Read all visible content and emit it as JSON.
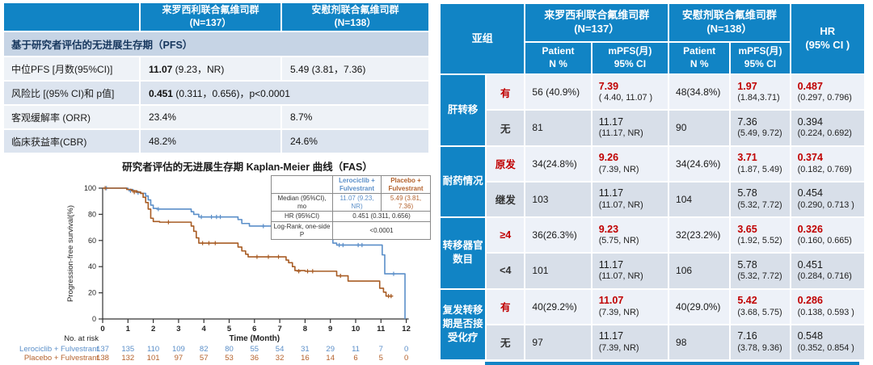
{
  "colors": {
    "header_blue": "#1184c5",
    "navy": "#17375e",
    "highlight_red": "#c00000",
    "curve_blue": "#5b8fc9",
    "curve_orange": "#a85c24",
    "label_blue": "#5b8fc9",
    "label_orange": "#b4622d"
  },
  "pfs_table": {
    "col_headers": [
      "来罗西利联合氟维司群\n(N=137）",
      "安慰剂联合氟维司群\n(N=138）"
    ],
    "section_header": "基于研究者评估的无进展生存期（PFS）",
    "rows": [
      {
        "label": "中位PFS [月数(95%CI)]",
        "span": false,
        "cells": [
          {
            "bold": "11.07",
            "rest": " (9.23，NR)"
          },
          {
            "bold": "",
            "rest": "5.49 (3.81，7.36)"
          }
        ]
      },
      {
        "label": "风险比 [(95% CI)和 p值]",
        "span": true,
        "cells": [
          {
            "bold": "0.451",
            "rest": " (0.311，0.656)，p<0.0001"
          }
        ]
      },
      {
        "label": "客观缓解率 (ORR)",
        "span": false,
        "cells": [
          {
            "bold": "",
            "rest": "23.4%"
          },
          {
            "bold": "",
            "rest": "8.7%"
          }
        ]
      },
      {
        "label": "临床获益率(CBR)",
        "span": false,
        "cells": [
          {
            "bold": "",
            "rest": "48.2%"
          },
          {
            "bold": "",
            "rest": "24.6%"
          }
        ]
      }
    ]
  },
  "chart_data": {
    "type": "line",
    "title": "研究者评估的无进展生存期 Kaplan-Meier 曲线（FAS）",
    "xlabel": "Time (Month)",
    "ylabel": "Progression-free survival(%)",
    "xlim": [
      0,
      12
    ],
    "ylim": [
      0,
      100
    ],
    "xticks": [
      0,
      1,
      2,
      3,
      4,
      5,
      6,
      7,
      8,
      9,
      10,
      11,
      12
    ],
    "yticks": [
      0,
      20,
      40,
      60,
      80,
      100
    ],
    "series": [
      {
        "name": "Lerociclib + Fulvestrant",
        "color": "#5b8fc9",
        "steps": [
          [
            0,
            100
          ],
          [
            1.0,
            99
          ],
          [
            1.2,
            98
          ],
          [
            1.35,
            97
          ],
          [
            1.5,
            96
          ],
          [
            1.7,
            94
          ],
          [
            1.8,
            91
          ],
          [
            1.9,
            87
          ],
          [
            2.0,
            84.5
          ],
          [
            2.15,
            84
          ],
          [
            3.5,
            82
          ],
          [
            3.6,
            80
          ],
          [
            3.8,
            78
          ],
          [
            5.35,
            76
          ],
          [
            5.5,
            73
          ],
          [
            5.8,
            71
          ],
          [
            7.25,
            68.5
          ],
          [
            7.4,
            66.5
          ],
          [
            7.55,
            64
          ],
          [
            9.0,
            61
          ],
          [
            9.1,
            58
          ],
          [
            9.25,
            56.5
          ],
          [
            11.05,
            49
          ],
          [
            11.15,
            34.5
          ],
          [
            11.95,
            0
          ]
        ],
        "censors": [
          [
            0.15,
            100
          ],
          [
            1.1,
            98
          ],
          [
            1.4,
            96.5
          ],
          [
            2.2,
            84
          ],
          [
            3.9,
            78
          ],
          [
            4.3,
            78
          ],
          [
            4.5,
            78
          ],
          [
            4.65,
            78
          ],
          [
            6.35,
            71
          ],
          [
            7.3,
            68.5
          ],
          [
            7.9,
            64
          ],
          [
            8.15,
            64
          ],
          [
            8.45,
            64
          ],
          [
            9.35,
            56.5
          ],
          [
            9.5,
            56.5
          ],
          [
            10.1,
            56.5
          ],
          [
            10.25,
            56.5
          ],
          [
            11.5,
            34.5
          ]
        ]
      },
      {
        "name": "Placebo + Fulvestrant",
        "color": "#a85c24",
        "steps": [
          [
            0,
            100
          ],
          [
            0.95,
            99
          ],
          [
            1.15,
            98
          ],
          [
            1.35,
            97
          ],
          [
            1.5,
            96
          ],
          [
            1.6,
            93
          ],
          [
            1.7,
            89
          ],
          [
            1.8,
            84
          ],
          [
            1.9,
            77
          ],
          [
            2.0,
            74.5
          ],
          [
            2.25,
            74
          ],
          [
            3.5,
            71
          ],
          [
            3.6,
            67
          ],
          [
            3.7,
            62
          ],
          [
            3.8,
            58
          ],
          [
            5.35,
            55
          ],
          [
            5.5,
            52
          ],
          [
            5.65,
            49.5
          ],
          [
            5.75,
            47.5
          ],
          [
            7.25,
            45
          ],
          [
            7.35,
            43
          ],
          [
            7.5,
            40
          ],
          [
            7.6,
            37
          ],
          [
            8.0,
            36.5
          ],
          [
            9.25,
            33
          ],
          [
            9.7,
            29
          ],
          [
            10.95,
            23.5
          ],
          [
            11.1,
            20.5
          ],
          [
            11.2,
            17.5
          ],
          [
            11.45,
            17.5
          ]
        ],
        "censors": [
          [
            0.1,
            100
          ],
          [
            1.25,
            97
          ],
          [
            2.6,
            74
          ],
          [
            3.95,
            58
          ],
          [
            4.2,
            58
          ],
          [
            4.45,
            58
          ],
          [
            6.1,
            47.5
          ],
          [
            6.55,
            47.5
          ],
          [
            6.95,
            47.5
          ],
          [
            7.75,
            36.5
          ],
          [
            8.1,
            36.5
          ],
          [
            8.3,
            36.5
          ],
          [
            9.4,
            33
          ],
          [
            11.3,
            17.5
          ],
          [
            11.4,
            17.5
          ]
        ]
      }
    ],
    "legend_table": {
      "col1": "Lerociclib +\nFulvestrant",
      "col2": "Placebo +\nFulvestrant",
      "rows": [
        {
          "label": "Median (95%CI), mo",
          "span": false,
          "v1": "11.07 (9.23, NR)",
          "v2": "5.49 (3.81, 7.36)"
        },
        {
          "label": "HR (95%CI)",
          "span": true,
          "v1": "0.451  (0.311, 0.656)"
        },
        {
          "label": "Log-Rank, one-side P",
          "span": true,
          "v1": "<0.0001"
        }
      ]
    },
    "at_risk": {
      "title": "No. at risk",
      "rows": [
        {
          "name": "Lerociclib + Fulvestrant",
          "color": "#5b8fc9",
          "values": [
            137,
            135,
            110,
            109,
            82,
            80,
            55,
            54,
            31,
            29,
            11,
            7,
            0
          ]
        },
        {
          "name": "Placebo + Fulvestrant",
          "color": "#b4622d",
          "values": [
            138,
            132,
            101,
            97,
            57,
            53,
            36,
            32,
            16,
            14,
            6,
            5,
            0
          ]
        }
      ]
    }
  },
  "subgroup_table": {
    "header": {
      "subgroup": "亚组",
      "group1": "来罗西利联合氟维司群\n(N=137）",
      "group2": "安慰剂联合氟维司群\n(N=138）",
      "sub_patient": "Patient\nN %",
      "sub_mpfs": "mPFS(月)\n95% CI",
      "hr": "HR\n(95% CI )"
    },
    "groups": [
      {
        "label": "肝转移",
        "rows": [
          {
            "name": "有",
            "highlight": true,
            "n1": "56 (40.9%)",
            "mpfs1_main": "7.39",
            "mpfs1_ci": "( 4.40, 11.07 )",
            "n2": "48(34.8%)",
            "mpfs2_main": "1.97",
            "mpfs2_ci": "(1.84,3.71)",
            "hr_main": "0.487",
            "hr_ci": "(0.297, 0.796)"
          },
          {
            "name": "无",
            "highlight": false,
            "n1": "81",
            "mpfs1_main": "11.17",
            "mpfs1_ci": "(11.17, NR)",
            "n2": "90",
            "mpfs2_main": "7.36",
            "mpfs2_ci": "(5.49, 9.72)",
            "hr_main": "0.394",
            "hr_ci": "(0.224, 0.692)"
          }
        ]
      },
      {
        "label": "耐药情况",
        "rows": [
          {
            "name": "原发",
            "highlight": true,
            "n1": "34(24.8%)",
            "mpfs1_main": "9.26",
            "mpfs1_ci": "(7.39, NR)",
            "n2": "34(24.6%)",
            "mpfs2_main": "3.71",
            "mpfs2_ci": "(1.87, 5.49)",
            "hr_main": "0.374",
            "hr_ci": "(0.182, 0.769)"
          },
          {
            "name": "继发",
            "highlight": false,
            "n1": "103",
            "mpfs1_main": "11.17",
            "mpfs1_ci": "(11.07, NR)",
            "n2": "104",
            "mpfs2_main": "5.78",
            "mpfs2_ci": "(5.32, 7.72)",
            "hr_main": "0.454",
            "hr_ci": "(0.290, 0.713 )"
          }
        ]
      },
      {
        "label": "转移器官数目",
        "rows": [
          {
            "name": "≥4",
            "highlight": true,
            "n1": "36(26.3%)",
            "mpfs1_main": "9.23",
            "mpfs1_ci": "(5.75, NR)",
            "n2": "32(23.2%)",
            "mpfs2_main": "3.65",
            "mpfs2_ci": "(1.92, 5.52)",
            "hr_main": "0.326",
            "hr_ci": "(0.160, 0.665)"
          },
          {
            "name": "<4",
            "highlight": false,
            "n1": "101",
            "mpfs1_main": "11.17",
            "mpfs1_ci": "(11.07, NR)",
            "n2": "106",
            "mpfs2_main": "5.78",
            "mpfs2_ci": "(5.32, 7.72)",
            "hr_main": "0.451",
            "hr_ci": "(0.284, 0.716)"
          }
        ]
      },
      {
        "label": "复发转移期是否接受化疗",
        "rows": [
          {
            "name": "有",
            "highlight": true,
            "n1": "40(29.2%)",
            "mpfs1_main": "11.07",
            "mpfs1_ci": "(7.39, NR)",
            "n2": "40(29.0%)",
            "mpfs2_main": "5.42",
            "mpfs2_ci": "(3.68, 5.75)",
            "hr_main": "0.286",
            "hr_ci": "(0.138, 0.593 )"
          },
          {
            "name": "无",
            "highlight": false,
            "n1": "97",
            "mpfs1_main": "11.17",
            "mpfs1_ci": "(7.39, NR)",
            "n2": "98",
            "mpfs2_main": "7.16",
            "mpfs2_ci": "(3.78, 9.36)",
            "hr_main": "0.548",
            "hr_ci": "(0.352, 0.854 )"
          }
        ]
      }
    ]
  }
}
